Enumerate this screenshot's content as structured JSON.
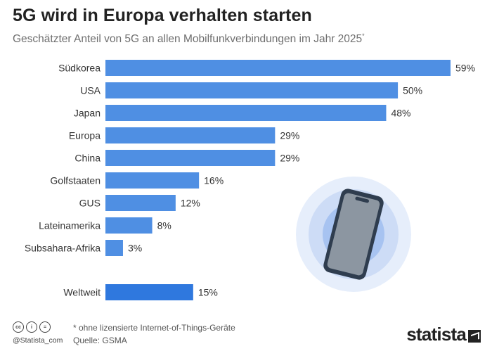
{
  "header": {
    "title": "5G wird in Europa verhalten starten",
    "subtitle": "Geschätzter Anteil von 5G an allen Mobilfunkverbindungen im Jahr 2025",
    "subtitle_marker": "*"
  },
  "chart_data": {
    "type": "bar",
    "orientation": "horizontal",
    "title": "5G wird in Europa verhalten starten",
    "subtitle": "Geschätzter Anteil von 5G an allen Mobilfunkverbindungen im Jahr 2025*",
    "categories": [
      "Südkorea",
      "USA",
      "Japan",
      "Europa",
      "China",
      "Golfstaaten",
      "GUS",
      "Lateinamerika",
      "Subsahara-Afrika",
      "Weltweit"
    ],
    "values": [
      59,
      50,
      48,
      29,
      29,
      16,
      12,
      8,
      3,
      15
    ],
    "value_labels": [
      "59%",
      "50%",
      "48%",
      "29%",
      "29%",
      "16%",
      "12%",
      "8%",
      "3%",
      "15%"
    ],
    "unit": "%",
    "xlim": [
      0,
      59
    ],
    "grid": false,
    "colors": {
      "bar": "#4f8fe3",
      "highlight_bar": "#2f78de",
      "highlight_category": "Weltweit"
    }
  },
  "illustration": {
    "icon": "smartphone-icon",
    "colors": {
      "ring_outer": "#e6eefb",
      "ring_mid": "#cddcf6",
      "ring_inner": "#a7c3f1",
      "phone": "#2f3d4f",
      "screen": "#8c96a1"
    }
  },
  "footer": {
    "note": "* ohne lizensierte Internet-of-Things-Geräte",
    "source": "Quelle: GSMA",
    "handle": "@Statista_com",
    "license_icons": [
      "cc-icon",
      "attribution-icon",
      "no-derivatives-icon"
    ],
    "license_glyphs": [
      "cc",
      "i",
      "="
    ],
    "logo": "statista"
  }
}
